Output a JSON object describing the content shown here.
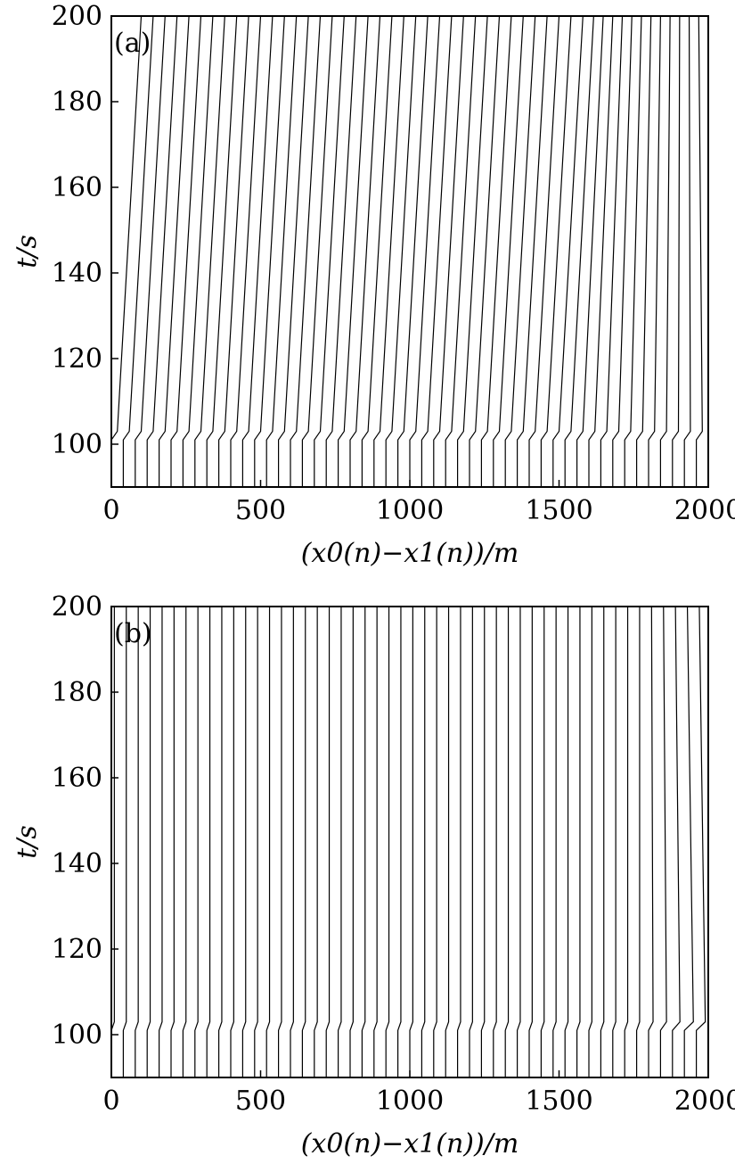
{
  "chart_data": [
    {
      "type": "line",
      "label": "(a)",
      "xlabel": "(x0(n)−x1(n))/m",
      "ylabel": "t/s",
      "xlim": [
        0,
        2000
      ],
      "ylim": [
        90,
        200
      ],
      "xticks": [
        0,
        500,
        1000,
        1500,
        2000
      ],
      "yticks": [
        100,
        120,
        140,
        160,
        180,
        200
      ],
      "color": "#000000",
      "t": [
        90,
        101,
        103,
        200
      ],
      "series": [
        {
          "x": [
            0,
            0,
            20,
            100
          ]
        },
        {
          "x": [
            40,
            40,
            60,
            140
          ]
        },
        {
          "x": [
            80,
            80,
            100,
            180
          ]
        },
        {
          "x": [
            120,
            120,
            140,
            220
          ]
        },
        {
          "x": [
            160,
            160,
            180,
            260
          ]
        },
        {
          "x": [
            200,
            200,
            220,
            300
          ]
        },
        {
          "x": [
            240,
            240,
            260,
            340
          ]
        },
        {
          "x": [
            280,
            280,
            300,
            380
          ]
        },
        {
          "x": [
            320,
            320,
            340,
            420
          ]
        },
        {
          "x": [
            360,
            360,
            380,
            460
          ]
        },
        {
          "x": [
            400,
            400,
            420,
            500
          ]
        },
        {
          "x": [
            440,
            440,
            460,
            540
          ]
        },
        {
          "x": [
            480,
            480,
            500,
            580
          ]
        },
        {
          "x": [
            520,
            520,
            540,
            620
          ]
        },
        {
          "x": [
            560,
            560,
            580,
            660
          ]
        },
        {
          "x": [
            600,
            600,
            620,
            700
          ]
        },
        {
          "x": [
            640,
            640,
            660,
            740
          ]
        },
        {
          "x": [
            680,
            680,
            700,
            780
          ]
        },
        {
          "x": [
            720,
            720,
            740,
            820
          ]
        },
        {
          "x": [
            760,
            760,
            780,
            860
          ]
        },
        {
          "x": [
            800,
            800,
            820,
            900
          ]
        },
        {
          "x": [
            840,
            840,
            860,
            940
          ]
        },
        {
          "x": [
            880,
            880,
            900,
            980
          ]
        },
        {
          "x": [
            920,
            920,
            940,
            1020
          ]
        },
        {
          "x": [
            960,
            960,
            980,
            1060
          ]
        },
        {
          "x": [
            1000,
            1000,
            1020,
            1100
          ]
        },
        {
          "x": [
            1040,
            1040,
            1060,
            1140
          ]
        },
        {
          "x": [
            1080,
            1080,
            1100,
            1180
          ]
        },
        {
          "x": [
            1120,
            1120,
            1140,
            1220
          ]
        },
        {
          "x": [
            1160,
            1160,
            1180,
            1260
          ]
        },
        {
          "x": [
            1200,
            1200,
            1220,
            1300
          ]
        },
        {
          "x": [
            1240,
            1240,
            1260,
            1340
          ]
        },
        {
          "x": [
            1280,
            1280,
            1300,
            1380
          ]
        },
        {
          "x": [
            1320,
            1320,
            1340,
            1420
          ]
        },
        {
          "x": [
            1360,
            1360,
            1380,
            1460
          ]
        },
        {
          "x": [
            1400,
            1400,
            1420,
            1500
          ]
        },
        {
          "x": [
            1440,
            1440,
            1460,
            1540
          ]
        },
        {
          "x": [
            1480,
            1480,
            1500,
            1580
          ]
        },
        {
          "x": [
            1520,
            1520,
            1540,
            1616
          ]
        },
        {
          "x": [
            1560,
            1560,
            1580,
            1648
          ]
        },
        {
          "x": [
            1600,
            1600,
            1620,
            1680
          ]
        },
        {
          "x": [
            1640,
            1640,
            1660,
            1712
          ]
        },
        {
          "x": [
            1680,
            1680,
            1700,
            1744
          ]
        },
        {
          "x": [
            1720,
            1720,
            1740,
            1776
          ]
        },
        {
          "x": [
            1760,
            1760,
            1780,
            1808
          ]
        },
        {
          "x": [
            1800,
            1800,
            1820,
            1840
          ]
        },
        {
          "x": [
            1840,
            1840,
            1860,
            1872
          ]
        },
        {
          "x": [
            1880,
            1880,
            1900,
            1904
          ]
        },
        {
          "x": [
            1920,
            1920,
            1940,
            1936
          ]
        },
        {
          "x": [
            1960,
            1960,
            1980,
            1968
          ]
        },
        {
          "x": [
            2000,
            2000,
            2000,
            2000
          ]
        }
      ]
    },
    {
      "type": "line",
      "label": "(b)",
      "xlabel": "(x0(n)−x1(n))/m",
      "ylabel": "t/s",
      "xlim": [
        0,
        2000
      ],
      "ylim": [
        90,
        200
      ],
      "xticks": [
        0,
        500,
        1000,
        1500,
        2000
      ],
      "yticks": [
        100,
        120,
        140,
        160,
        180,
        200
      ],
      "color": "#000000",
      "t": [
        90,
        101,
        103,
        200
      ],
      "series": [
        {
          "x": [
            0,
            0,
            10,
            10
          ]
        },
        {
          "x": [
            40,
            40,
            50,
            50
          ]
        },
        {
          "x": [
            80,
            80,
            90,
            90
          ]
        },
        {
          "x": [
            120,
            120,
            130,
            130
          ]
        },
        {
          "x": [
            160,
            160,
            170,
            170
          ]
        },
        {
          "x": [
            200,
            200,
            210,
            210
          ]
        },
        {
          "x": [
            240,
            240,
            250,
            250
          ]
        },
        {
          "x": [
            280,
            280,
            290,
            290
          ]
        },
        {
          "x": [
            320,
            320,
            330,
            330
          ]
        },
        {
          "x": [
            360,
            360,
            370,
            370
          ]
        },
        {
          "x": [
            400,
            400,
            410,
            410
          ]
        },
        {
          "x": [
            440,
            440,
            450,
            450
          ]
        },
        {
          "x": [
            480,
            480,
            490,
            490
          ]
        },
        {
          "x": [
            520,
            520,
            530,
            530
          ]
        },
        {
          "x": [
            560,
            560,
            570,
            570
          ]
        },
        {
          "x": [
            600,
            600,
            610,
            610
          ]
        },
        {
          "x": [
            640,
            640,
            650,
            650
          ]
        },
        {
          "x": [
            680,
            680,
            690,
            690
          ]
        },
        {
          "x": [
            720,
            720,
            730,
            730
          ]
        },
        {
          "x": [
            760,
            760,
            770,
            770
          ]
        },
        {
          "x": [
            800,
            800,
            810,
            810
          ]
        },
        {
          "x": [
            840,
            840,
            850,
            850
          ]
        },
        {
          "x": [
            880,
            880,
            890,
            890
          ]
        },
        {
          "x": [
            920,
            920,
            930,
            930
          ]
        },
        {
          "x": [
            960,
            960,
            970,
            970
          ]
        },
        {
          "x": [
            1000,
            1000,
            1010,
            1010
          ]
        },
        {
          "x": [
            1040,
            1040,
            1050,
            1050
          ]
        },
        {
          "x": [
            1080,
            1080,
            1090,
            1090
          ]
        },
        {
          "x": [
            1120,
            1120,
            1130,
            1130
          ]
        },
        {
          "x": [
            1160,
            1160,
            1170,
            1170
          ]
        },
        {
          "x": [
            1200,
            1200,
            1210,
            1210
          ]
        },
        {
          "x": [
            1240,
            1240,
            1250,
            1250
          ]
        },
        {
          "x": [
            1280,
            1280,
            1290,
            1290
          ]
        },
        {
          "x": [
            1320,
            1320,
            1330,
            1330
          ]
        },
        {
          "x": [
            1360,
            1360,
            1370,
            1370
          ]
        },
        {
          "x": [
            1400,
            1400,
            1410,
            1410
          ]
        },
        {
          "x": [
            1440,
            1440,
            1450,
            1450
          ]
        },
        {
          "x": [
            1480,
            1480,
            1490,
            1490
          ]
        },
        {
          "x": [
            1520,
            1520,
            1530,
            1530
          ]
        },
        {
          "x": [
            1560,
            1560,
            1570,
            1570
          ]
        },
        {
          "x": [
            1600,
            1600,
            1610,
            1610
          ]
        },
        {
          "x": [
            1640,
            1640,
            1650,
            1650
          ]
        },
        {
          "x": [
            1680,
            1680,
            1690,
            1690
          ]
        },
        {
          "x": [
            1720,
            1720,
            1730,
            1730
          ]
        },
        {
          "x": [
            1760,
            1760,
            1770,
            1770
          ]
        },
        {
          "x": [
            1800,
            1800,
            1815,
            1810
          ]
        },
        {
          "x": [
            1840,
            1840,
            1860,
            1850
          ]
        },
        {
          "x": [
            1880,
            1880,
            1905,
            1890
          ]
        },
        {
          "x": [
            1920,
            1920,
            1950,
            1930
          ]
        },
        {
          "x": [
            1960,
            1960,
            1990,
            1970
          ]
        },
        {
          "x": [
            2000,
            2000,
            2000,
            2000
          ]
        }
      ]
    }
  ]
}
